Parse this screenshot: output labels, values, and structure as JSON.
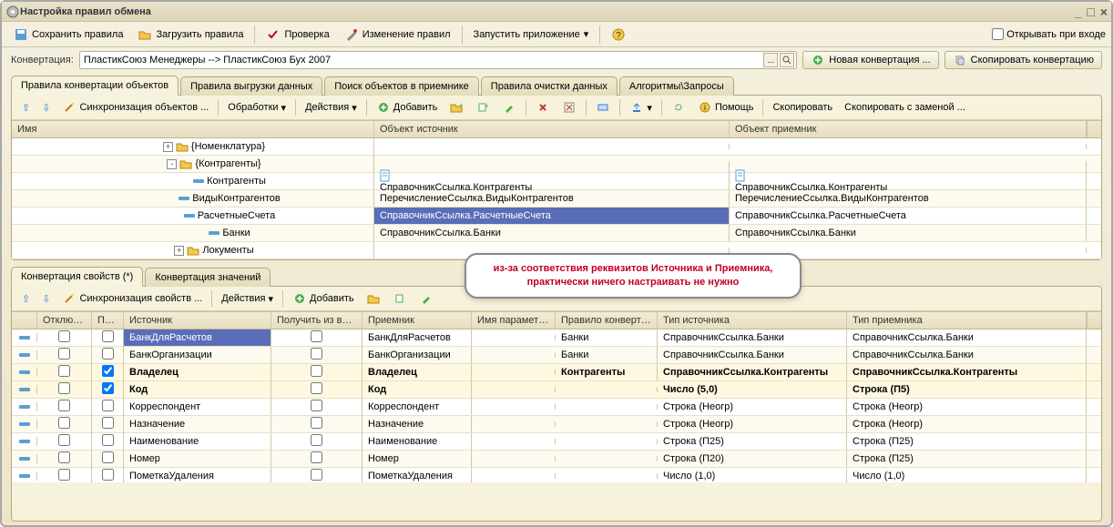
{
  "window": {
    "title": "Настройка правил обмена",
    "min": "_",
    "max": "□",
    "close": "×"
  },
  "mainToolbar": {
    "saveRules": "Сохранить правила",
    "loadRules": "Загрузить правила",
    "check": "Проверка",
    "editRules": "Изменение правил",
    "runApp": "Запустить приложение",
    "openOnStart": "Открывать при входе"
  },
  "conversionRow": {
    "label": "Конвертация:",
    "value": "ПластикСоюз Менеджеры --> ПластикСоюз Бух 2007",
    "newConv": "Новая конвертация ...",
    "copyConv": "Скопировать конвертацию"
  },
  "mainTabs": [
    "Правила конвертации объектов",
    "Правила выгрузки данных",
    "Поиск объектов в приемнике",
    "Правила очистки данных",
    "Алгоритмы\\Запросы"
  ],
  "upperToolbar": {
    "syncObjects": "Синхронизация объектов ...",
    "processing": "Обработки",
    "actions": "Действия",
    "add": "Добавить",
    "help": "Помощь",
    "copy": "Скопировать",
    "copyReplace": "Скопировать с заменой ..."
  },
  "upperGrid": {
    "headers": {
      "name": "Имя",
      "source": "Объект источник",
      "target": "Объект приемник"
    },
    "rows": [
      {
        "indent": 1,
        "expander": "+",
        "type": "folder",
        "name": "{Номенклатура}",
        "source": "",
        "target": ""
      },
      {
        "indent": 1,
        "expander": "-",
        "type": "folder",
        "name": "{Контрагенты}",
        "source": "",
        "target": ""
      },
      {
        "indent": 2,
        "type": "item",
        "name": "Контрагенты",
        "source": "СправочникСсылка.Контрагенты",
        "target": "СправочникСсылка.Контрагенты",
        "srcIcon": true,
        "tgtIcon": true
      },
      {
        "indent": 2,
        "type": "item",
        "name": "ВидыКонтрагентов",
        "source": "ПеречислениеСсылка.ВидыКонтрагентов",
        "target": "ПеречислениеСсылка.ВидыКонтрагентов"
      },
      {
        "indent": 2,
        "type": "item",
        "name": "РасчетныеСчета",
        "source": "СправочникСсылка.РасчетныеСчета",
        "target": "СправочникСсылка.РасчетныеСчета",
        "selected": true
      },
      {
        "indent": 2,
        "type": "item",
        "name": "Банки",
        "source": "СправочникСсылка.Банки",
        "target": "СправочникСсылка.Банки"
      },
      {
        "indent": 1,
        "expander": "+",
        "type": "folder",
        "name": "Локументы",
        "source": "",
        "target": "",
        "cut": true
      }
    ]
  },
  "subTabs": [
    "Конвертация свойств (*)",
    "Конвертация значений"
  ],
  "lowerToolbar": {
    "syncProps": "Синхронизация свойств ...",
    "actions": "Действия",
    "add": "Добавить"
  },
  "lowerGrid": {
    "headers": {
      "c0": "",
      "disable": "Отключи...",
      "search": "Пои...",
      "source": "Источник",
      "getFromInput": "Получить из вход...",
      "target": "Приемник",
      "paramName": "Имя параметра",
      "convRule": "Правило конверта...",
      "srcType": "Тип источника",
      "tgtType": "Тип приемника"
    },
    "rows": [
      {
        "marker": true,
        "disable": false,
        "search": false,
        "source": "БанкДляРасчетов",
        "getIn": false,
        "target": "БанкДляРасчетов",
        "param": "",
        "rule": "Банки",
        "srcType": "СправочникСсылка.Банки",
        "tgtType": "СправочникСсылка.Банки",
        "selectedSource": true
      },
      {
        "marker": true,
        "disable": false,
        "search": false,
        "source": "БанкОрганизации",
        "getIn": false,
        "target": "БанкОрганизации",
        "param": "",
        "rule": "Банки",
        "srcType": "СправочникСсылка.Банки",
        "tgtType": "СправочникСсылка.Банки"
      },
      {
        "marker": true,
        "disable": false,
        "search": true,
        "source": "Владелец",
        "getIn": false,
        "target": "Владелец",
        "param": "",
        "rule": "Контрагенты",
        "srcType": "СправочникСсылка.Контрагенты",
        "tgtType": "СправочникСсылка.Контрагенты",
        "bold": true
      },
      {
        "marker": true,
        "disable": false,
        "search": true,
        "source": "Код",
        "getIn": false,
        "target": "Код",
        "param": "",
        "rule": "",
        "srcType": "Число (5,0)",
        "tgtType": "Строка (П5)",
        "bold": true
      },
      {
        "marker": true,
        "disable": false,
        "search": false,
        "source": "Корреспондент",
        "getIn": false,
        "target": "Корреспондент",
        "param": "",
        "rule": "",
        "srcType": "Строка (Неогр)",
        "tgtType": "Строка (Неогр)"
      },
      {
        "marker": true,
        "disable": false,
        "search": false,
        "source": "Назначение",
        "getIn": false,
        "target": "Назначение",
        "param": "",
        "rule": "",
        "srcType": "Строка (Неогр)",
        "tgtType": "Строка (Неогр)"
      },
      {
        "marker": true,
        "disable": false,
        "search": false,
        "source": "Наименование",
        "getIn": false,
        "target": "Наименование",
        "param": "",
        "rule": "",
        "srcType": "Строка (П25)",
        "tgtType": "Строка (П25)"
      },
      {
        "marker": true,
        "disable": false,
        "search": false,
        "source": "Номер",
        "getIn": false,
        "target": "Номер",
        "param": "",
        "rule": "",
        "srcType": "Строка (П20)",
        "tgtType": "Строка (П25)"
      },
      {
        "marker": true,
        "disable": false,
        "search": false,
        "source": "ПометкаУдаления",
        "getIn": false,
        "target": "ПометкаУдаления",
        "param": "",
        "rule": "",
        "srcType": "Число (1,0)",
        "tgtType": "Число (1,0)"
      }
    ]
  },
  "callout": "из-за соответствия реквизитов Источника и Приемника, практически ничего настраивать не нужно",
  "colors": {
    "selectedRow": "#5a6db8",
    "calloutText": "#c00020",
    "windowBg1": "#f5f0e0",
    "windowBg2": "#ede5c8"
  },
  "layout": {
    "upperCols": {
      "name": 398,
      "source": 390,
      "target": 380,
      "scroll": 16
    },
    "lowerCols": {
      "c0": 28,
      "disable": 60,
      "search": 35,
      "source": 162,
      "getIn": 100,
      "target": 120,
      "param": 92,
      "rule": 112,
      "srcType": 208,
      "tgtType": 208,
      "scroll": 16
    }
  }
}
